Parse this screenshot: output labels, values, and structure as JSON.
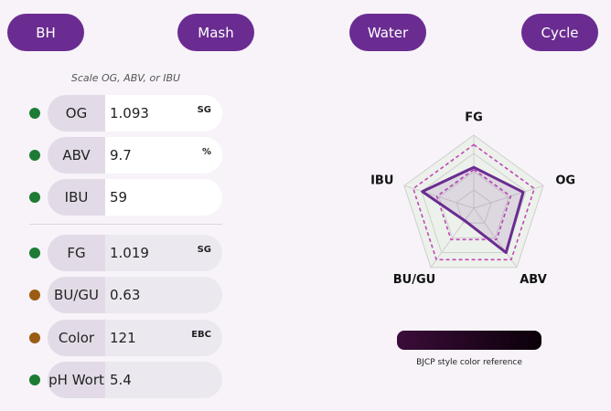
{
  "tabs": [
    "BH",
    "Mash",
    "Water",
    "Cycle"
  ],
  "scale_hint": "Scale OG, ABV, or IBU",
  "inputs": [
    {
      "label": "OG",
      "value": "1.093",
      "unit": "SG",
      "status_color": "#1e7b34"
    },
    {
      "label": "ABV",
      "value": "9.7",
      "unit": "%",
      "status_color": "#1e7b34"
    },
    {
      "label": "IBU",
      "value": "59",
      "status_color": "#1e7b34"
    }
  ],
  "results": [
    {
      "label": "FG",
      "value": "1.019",
      "unit": "SG",
      "status_color": "#1e7b34"
    },
    {
      "label": "BU/GU",
      "value": "0.63",
      "status_color": "#9a5b12"
    },
    {
      "label": "Color",
      "value": "121",
      "unit": "EBC",
      "status_color": "#9a5b12"
    },
    {
      "label": "pH Wort",
      "value": "5.4",
      "status_color": "#1e7b34"
    }
  ],
  "chart_data": {
    "type": "radar",
    "axes": [
      "FG",
      "OG",
      "ABV",
      "BU/GU",
      "IBU"
    ],
    "rlim": [
      0,
      1
    ],
    "rticks": [
      0.25,
      0.5,
      0.75,
      1
    ],
    "series": [
      {
        "color": "#c048b8",
        "dashed": true,
        "values": [
          0.87,
          0.87,
          0.87,
          0.87,
          0.87
        ]
      },
      {
        "color": "#c048b8",
        "dashed": true,
        "values": [
          0.53,
          0.53,
          0.53,
          0.53,
          0.53
        ]
      },
      {
        "color": "#6a2c91",
        "dashed": false,
        "values": [
          0.56,
          0.71,
          0.75,
          0.21,
          0.74
        ]
      }
    ]
  },
  "color_bar": {
    "colors": [
      "#3c0c3a",
      "#0a0008"
    ],
    "caption": "BJCP style color reference"
  }
}
